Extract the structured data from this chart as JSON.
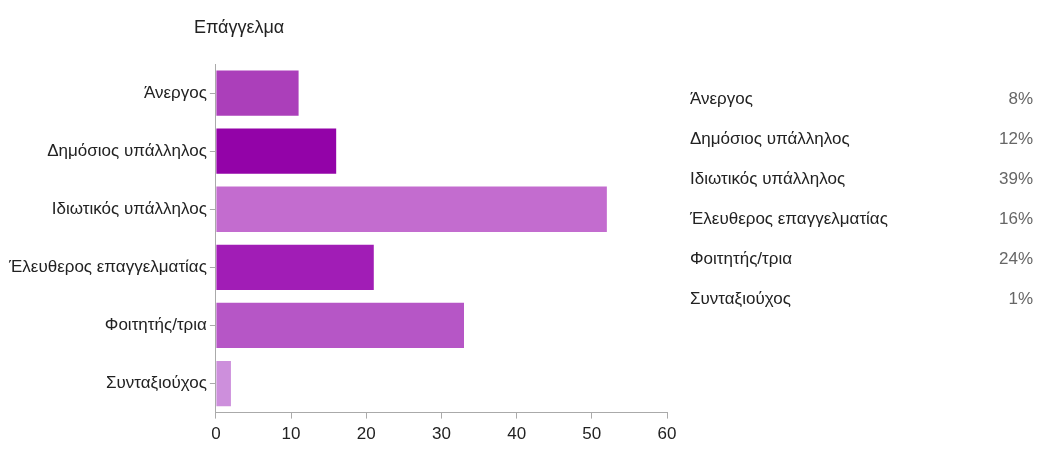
{
  "chart_data": {
    "type": "bar",
    "orientation": "horizontal",
    "title": "Επάγγελμα",
    "categories": [
      "Άνεργος",
      "Δημόσιος υπάλληλος",
      "Ιδιωτικός υπάλληλος",
      "Έλευθερος επαγγελματίας",
      "Φοιτητής/τρια",
      "Συνταξιούχος"
    ],
    "values": [
      11,
      16,
      52,
      21,
      33,
      2
    ],
    "colors": [
      "#ab3fba",
      "#9303a8",
      "#c36ccf",
      "#a11db6",
      "#b656c6",
      "#cd8fdc"
    ],
    "xlim": [
      0,
      60
    ],
    "xticks": [
      0,
      10,
      20,
      30,
      40,
      50,
      60
    ],
    "annotations": [
      "8%",
      "12%",
      "39%",
      "16%",
      "24%",
      "1%"
    ]
  }
}
